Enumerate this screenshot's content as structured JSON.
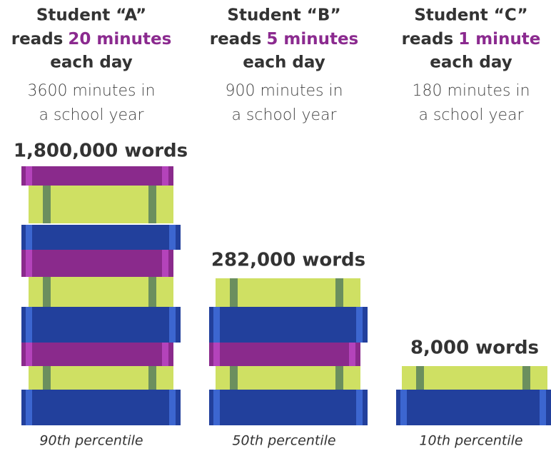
{
  "columns": [
    {
      "student": "Student “A”",
      "reads": "reads",
      "amount": "20 minutes",
      "each_day": "each day",
      "minutes_line": "3600 minutes in",
      "year_line": "a school year",
      "words": "1,800,000 words",
      "percentile": "90th percentile"
    },
    {
      "student": "Student “B”",
      "reads": "reads",
      "amount": "5 minutes",
      "each_day": "each day",
      "minutes_line": "900 minutes in",
      "year_line": "a school year",
      "words": "282,000 words",
      "percentile": "50th percentile"
    },
    {
      "student": "Student “C”",
      "reads": "reads",
      "amount": "1 minute",
      "each_day": "each day",
      "minutes_line": "180 minutes in",
      "year_line": "a school year",
      "words": "8,000 words",
      "percentile": "10th percentile"
    }
  ]
}
